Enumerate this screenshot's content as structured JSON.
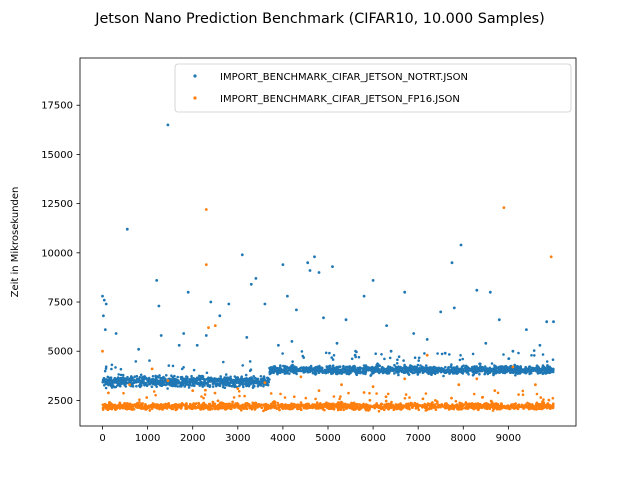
{
  "chart_data": {
    "type": "scatter",
    "title": "Jetson Nano Prediction Benchmark (CIFAR10, 10.000 Samples)",
    "xlabel": "",
    "ylabel": "Zeit in Mikrosekunden",
    "xlim": [
      -500,
      10500
    ],
    "ylim": [
      1200,
      19900
    ],
    "xticks": [
      0,
      1000,
      2000,
      3000,
      4000,
      5000,
      6000,
      7000,
      8000,
      9000
    ],
    "yticks": [
      2500,
      5000,
      7500,
      10000,
      12500,
      15000,
      17500
    ],
    "grid": false,
    "legend_position": "top-right",
    "series": [
      {
        "name": "IMPORT_BENCHMARK_CIFAR_JETSON_NOTRT.JSON",
        "color": "#1f77b4",
        "bands": [
          {
            "x_start": 0,
            "x_end": 3700,
            "y_center": 3450,
            "y_spread": 450
          },
          {
            "x_start": 3700,
            "x_end": 10000,
            "y_center": 4050,
            "y_spread": 350
          }
        ],
        "outliers": [
          [
            1450,
            16500
          ],
          [
            550,
            11200
          ],
          [
            7950,
            10400
          ],
          [
            4700,
            9800
          ],
          [
            3100,
            9900
          ],
          [
            4550,
            9500
          ],
          [
            7750,
            9500
          ],
          [
            4000,
            9400
          ],
          [
            1200,
            8600
          ],
          [
            6000,
            8600
          ],
          [
            4600,
            9100
          ],
          [
            4800,
            9000
          ],
          [
            5100,
            9300
          ],
          [
            3300,
            8400
          ],
          [
            3400,
            8700
          ],
          [
            8300,
            8100
          ],
          [
            8600,
            8000
          ],
          [
            6700,
            8000
          ],
          [
            1900,
            8000
          ],
          [
            4100,
            7800
          ],
          [
            5800,
            7800
          ],
          [
            2400,
            7500
          ],
          [
            2600,
            6800
          ],
          [
            3600,
            7400
          ],
          [
            1250,
            7300
          ],
          [
            2800,
            7400
          ],
          [
            4300,
            7100
          ],
          [
            7800,
            7200
          ],
          [
            7500,
            7000
          ],
          [
            8800,
            6600
          ],
          [
            9850,
            6500
          ],
          [
            10000,
            6500
          ],
          [
            9400,
            6100
          ],
          [
            5400,
            6600
          ],
          [
            6300,
            6300
          ],
          [
            0,
            7800
          ],
          [
            40,
            7600
          ],
          [
            80,
            7400
          ],
          [
            20,
            6800
          ],
          [
            60,
            6100
          ],
          [
            300,
            5900
          ],
          [
            1800,
            5900
          ],
          [
            1300,
            5800
          ],
          [
            2300,
            5800
          ],
          [
            3200,
            5700
          ],
          [
            6900,
            5900
          ],
          [
            4900,
            6700
          ],
          [
            7200,
            5600
          ],
          [
            4200,
            5500
          ],
          [
            5200,
            5400
          ],
          [
            9700,
            5300
          ],
          [
            8500,
            5400
          ],
          [
            1700,
            5300
          ],
          [
            3900,
            5300
          ],
          [
            2100,
            5300
          ],
          [
            6400,
            5000
          ],
          [
            7600,
            4900
          ],
          [
            9100,
            5000
          ],
          [
            800,
            5100
          ],
          [
            5600,
            4800
          ]
        ]
      },
      {
        "name": "IMPORT_BENCHMARK_CIFAR_JETSON_FP16.JSON",
        "color": "#ff7f0e",
        "bands": [
          {
            "x_start": 0,
            "x_end": 10000,
            "y_center": 2200,
            "y_spread": 280
          }
        ],
        "outliers": [
          [
            2300,
            12200
          ],
          [
            8900,
            12300
          ],
          [
            2300,
            9400
          ],
          [
            9950,
            9800
          ],
          [
            2350,
            6200
          ],
          [
            2500,
            6300
          ],
          [
            0,
            5000
          ],
          [
            1100,
            4100
          ],
          [
            9100,
            4200
          ],
          [
            7200,
            4800
          ],
          [
            4400,
            3700
          ],
          [
            6000,
            3200
          ],
          [
            7900,
            3300
          ],
          [
            8300,
            3600
          ],
          [
            1450,
            3500
          ],
          [
            3600,
            3400
          ],
          [
            5300,
            3300
          ],
          [
            6700,
            3600
          ],
          [
            9600,
            3300
          ],
          [
            600,
            3300
          ],
          [
            2000,
            3000
          ],
          [
            3000,
            3100
          ],
          [
            4800,
            3000
          ],
          [
            8700,
            3000
          ],
          [
            5800,
            2900
          ]
        ]
      }
    ]
  }
}
